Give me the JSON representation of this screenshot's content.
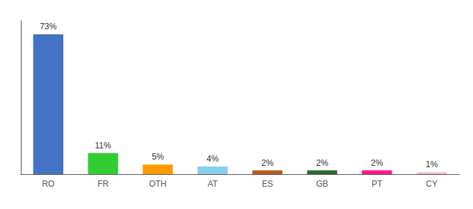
{
  "chart_data": {
    "type": "bar",
    "categories": [
      "RO",
      "FR",
      "OTH",
      "AT",
      "ES",
      "GB",
      "PT",
      "CY"
    ],
    "values": [
      73,
      11,
      5,
      4,
      2,
      2,
      2,
      1
    ],
    "value_labels": [
      "73%",
      "11%",
      "5%",
      "4%",
      "2%",
      "2%",
      "2%",
      "1%"
    ],
    "colors": [
      "#4472c4",
      "#33cc33",
      "#ff9900",
      "#87ceeb",
      "#b85c1a",
      "#2d6a2d",
      "#ff1493",
      "#ffb6c1"
    ],
    "ylim": [
      0,
      80
    ],
    "grid": false,
    "data_labels": true,
    "tick_labels": "x"
  }
}
